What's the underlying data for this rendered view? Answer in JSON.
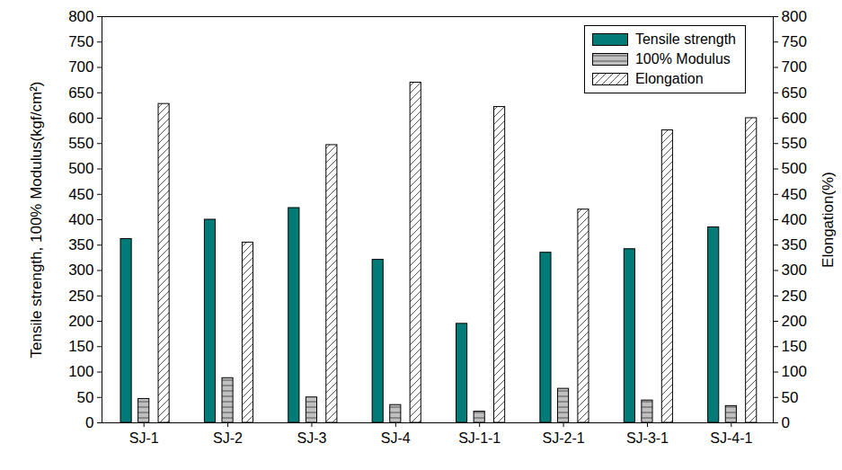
{
  "chart_data": {
    "type": "bar",
    "ylabel": "Tensile strength, 100% Modulus(kgf/cm²)",
    "y2label": "Elongation(%)",
    "categories": [
      "SJ-1",
      "SJ-2",
      "SJ-3",
      "SJ-4",
      "SJ-1-1",
      "SJ-2-1",
      "SJ-3-1",
      "SJ-4-1"
    ],
    "series": [
      {
        "name": "Tensile strength",
        "color": "#007b78",
        "values": [
          362,
          400,
          423,
          321,
          195,
          335,
          342,
          385
        ]
      },
      {
        "name": "100% Modulus",
        "color": "#c0c0c0",
        "values": [
          47,
          88,
          50,
          35,
          22,
          67,
          44,
          33
        ]
      },
      {
        "name": "Elongation",
        "color": "#ffffff",
        "axis": "y2",
        "values": [
          628,
          355,
          547,
          670,
          622,
          420,
          576,
          600
        ]
      }
    ],
    "ylim": [
      0,
      800
    ],
    "yticks": [
      0,
      50,
      100,
      150,
      200,
      250,
      300,
      350,
      400,
      450,
      500,
      550,
      600,
      650,
      700,
      750,
      800
    ],
    "y2lim": [
      0,
      800
    ],
    "y2ticks": [
      0,
      50,
      100,
      150,
      200,
      250,
      300,
      350,
      400,
      450,
      500,
      550,
      600,
      650,
      700,
      750,
      800
    ],
    "legend": "top-right",
    "grid": false
  }
}
